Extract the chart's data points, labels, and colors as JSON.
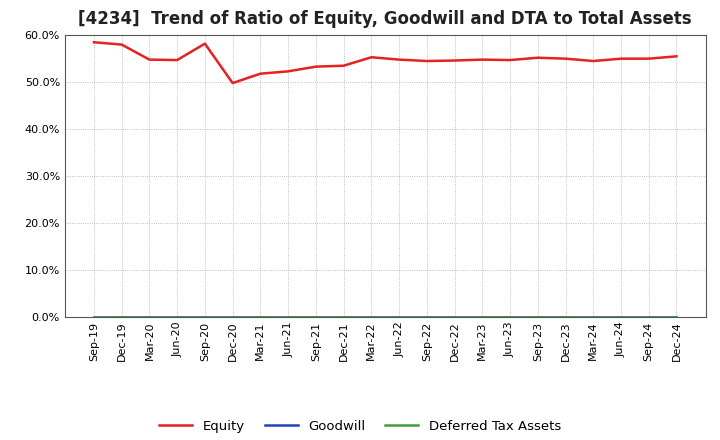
{
  "title": "[4234]  Trend of Ratio of Equity, Goodwill and DTA to Total Assets",
  "x_labels": [
    "Sep-19",
    "Dec-19",
    "Mar-20",
    "Jun-20",
    "Sep-20",
    "Dec-20",
    "Mar-21",
    "Jun-21",
    "Sep-21",
    "Dec-21",
    "Mar-22",
    "Jun-22",
    "Sep-22",
    "Dec-22",
    "Mar-23",
    "Jun-23",
    "Sep-23",
    "Dec-23",
    "Mar-24",
    "Jun-24",
    "Sep-24",
    "Dec-24"
  ],
  "equity": [
    58.5,
    58.0,
    54.8,
    54.7,
    58.2,
    49.8,
    51.8,
    52.3,
    53.3,
    53.5,
    55.3,
    54.8,
    54.5,
    54.6,
    54.8,
    54.7,
    55.2,
    55.0,
    54.5,
    55.0,
    55.0,
    55.5
  ],
  "goodwill": [
    0.0,
    0.0,
    0.0,
    0.0,
    0.0,
    0.0,
    0.0,
    0.0,
    0.0,
    0.0,
    0.0,
    0.0,
    0.0,
    0.0,
    0.0,
    0.0,
    0.0,
    0.0,
    0.0,
    0.0,
    0.0,
    0.0
  ],
  "dta": [
    0.0,
    0.0,
    0.0,
    0.0,
    0.0,
    0.0,
    0.0,
    0.0,
    0.0,
    0.0,
    0.0,
    0.0,
    0.0,
    0.0,
    0.0,
    0.0,
    0.0,
    0.0,
    0.0,
    0.0,
    0.0,
    0.0
  ],
  "equity_color": "#e82020",
  "goodwill_color": "#2040bf",
  "dta_color": "#40a040",
  "ylim": [
    0.0,
    60.0
  ],
  "yticks": [
    0.0,
    10.0,
    20.0,
    30.0,
    40.0,
    50.0,
    60.0
  ],
  "background_color": "#ffffff",
  "plot_bg_color": "#ffffff",
  "grid_color": "#888888",
  "title_fontsize": 12,
  "tick_fontsize": 8,
  "legend_fontsize": 9.5
}
